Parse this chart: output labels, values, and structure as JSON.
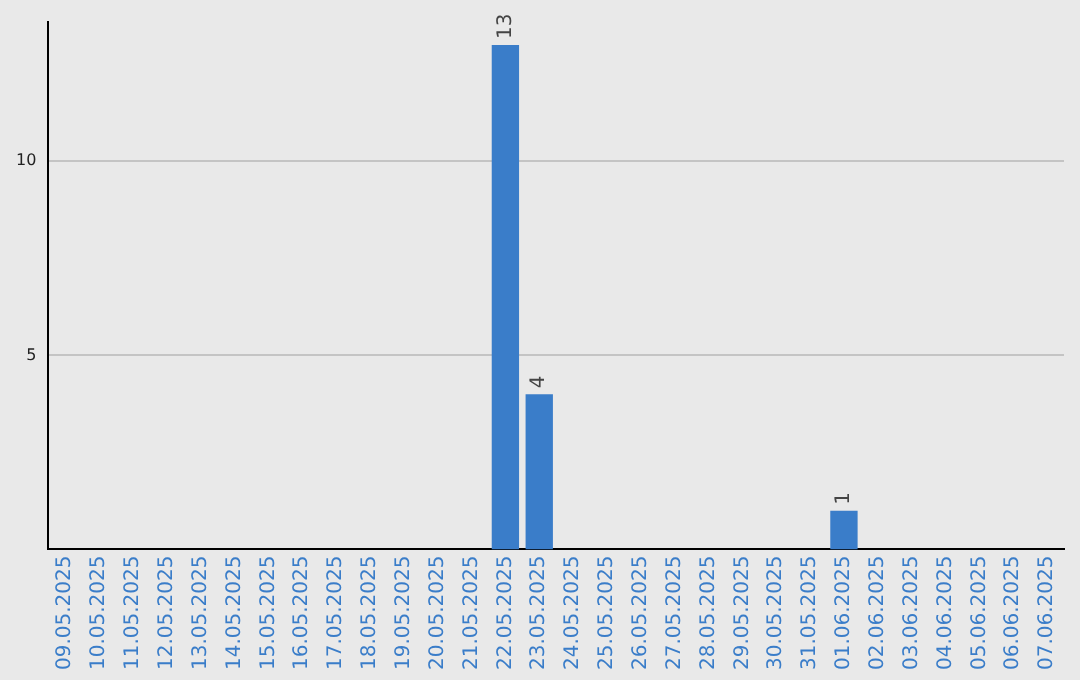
{
  "chart_data": {
    "type": "bar",
    "categories": [
      "09.05.2025",
      "10.05.2025",
      "11.05.2025",
      "12.05.2025",
      "13.05.2025",
      "14.05.2025",
      "15.05.2025",
      "16.05.2025",
      "17.05.2025",
      "18.05.2025",
      "19.05.2025",
      "20.05.2025",
      "21.05.2025",
      "22.05.2025",
      "23.05.2025",
      "24.05.2025",
      "25.05.2025",
      "26.05.2025",
      "27.05.2025",
      "28.05.2025",
      "29.05.2025",
      "30.05.2025",
      "31.05.2025",
      "01.06.2025",
      "02.06.2025",
      "03.06.2025",
      "04.06.2025",
      "05.06.2025",
      "06.06.2025",
      "07.06.2025"
    ],
    "values": [
      0,
      0,
      0,
      0,
      0,
      0,
      0,
      0,
      0,
      0,
      0,
      0,
      0,
      13,
      4,
      0,
      0,
      0,
      0,
      0,
      0,
      0,
      0,
      1,
      0,
      0,
      0,
      0,
      0,
      0
    ],
    "value_labels": [
      null,
      null,
      null,
      null,
      null,
      null,
      null,
      null,
      null,
      null,
      null,
      null,
      null,
      "13",
      "4",
      null,
      null,
      null,
      null,
      null,
      null,
      null,
      null,
      "1",
      null,
      null,
      null,
      null,
      null,
      null
    ],
    "color": "#3a7dc9",
    "ylim": [
      0,
      13.6
    ],
    "yticks": [
      5,
      10
    ],
    "grid": "y",
    "legend": false
  }
}
